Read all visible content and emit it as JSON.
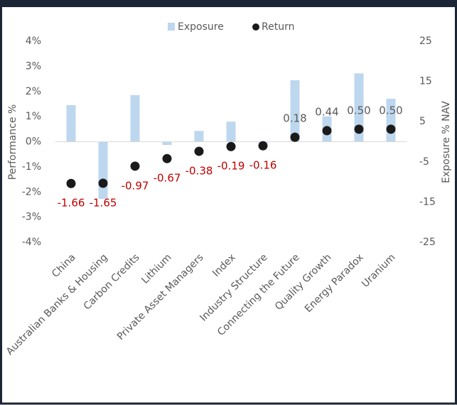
{
  "chart_data": {
    "type": "bar_dot",
    "categories": [
      "China",
      "Australian Banks & Housing",
      "Carbon Credits",
      "Lithium",
      "Private Asset Managers",
      "Index",
      "Industry Structure",
      "Connecting the Future",
      "Quality Growth",
      "Energy Paradox",
      "Uranium"
    ],
    "series": [
      {
        "name": "Exposure",
        "color": "#bdd7ee",
        "axis": "y2",
        "values": [
          9.1,
          -14.2,
          11.6,
          -0.8,
          2.7,
          5.0,
          -0.4,
          15.3,
          6.3,
          17.0,
          10.7
        ]
      },
      {
        "name": "Return",
        "color": "#1a1a1a",
        "values": [
          -1.66,
          -1.65,
          -0.97,
          -0.67,
          -0.38,
          -0.19,
          -0.16,
          0.18,
          0.44,
          0.5,
          0.5
        ],
        "value_labels": [
          "-1.66",
          "-1.65",
          "-0.97",
          "-0.67",
          "-0.38",
          "-0.19",
          "-0.16",
          "0.18",
          "0.44",
          "0.50",
          "0.50"
        ]
      }
    ],
    "ylabel": "Performance %",
    "y2label": "Exposure % NAV",
    "ylim": [
      -4,
      4
    ],
    "yticks": [
      {
        "value": 4,
        "label": "4%"
      },
      {
        "value": 3,
        "label": "3%"
      },
      {
        "value": 2,
        "label": "2%"
      },
      {
        "value": 1,
        "label": "1%"
      },
      {
        "value": 0,
        "label": "0%"
      },
      {
        "value": -1,
        "label": "-1%"
      },
      {
        "value": -2,
        "label": "-2%"
      },
      {
        "value": -3,
        "label": "-3%"
      },
      {
        "value": -4,
        "label": "-4%"
      }
    ],
    "y2lim": [
      -25,
      25
    ],
    "y2ticks": [
      25,
      15,
      5,
      -5,
      -15,
      -25
    ],
    "negative_color": "#c00000",
    "legend": "top"
  }
}
